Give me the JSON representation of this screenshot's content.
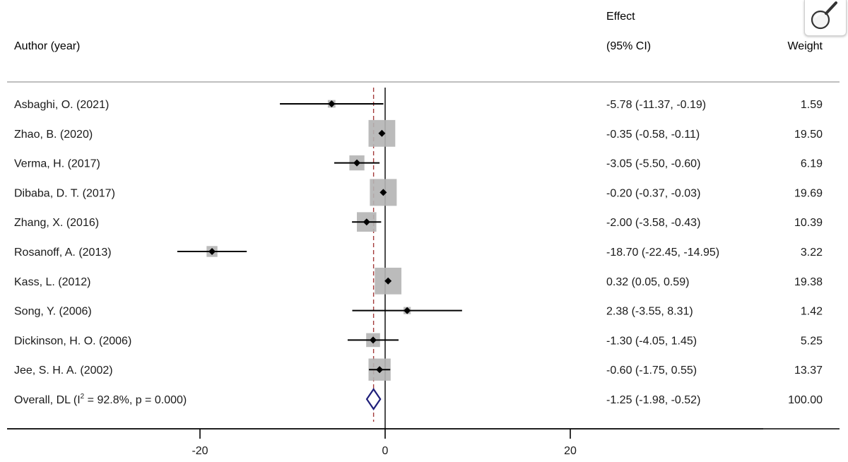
{
  "header": {
    "author_col": "Author (year)",
    "effect_line1": "Effect",
    "effect_line2": "(95% CI)",
    "weight_col": "Weight"
  },
  "zoom": {
    "icon": "magnifier-icon"
  },
  "colors": {
    "ci_line": "#000000",
    "box": "#b4b4b4",
    "diamond": "#1f1f7a",
    "ref_line": "#a33a3a",
    "axis": "#000000"
  },
  "chart_data": {
    "type": "forest",
    "xlim": [
      -40,
      40
    ],
    "xticks": [
      -20,
      0,
      20
    ],
    "xtick_labels": [
      "-20",
      "0",
      "20"
    ],
    "null_line": 0,
    "overall_line": -1.25,
    "studies": [
      {
        "label": "Asbaghi, O. (2021)",
        "effect": -5.78,
        "lower": -11.37,
        "upper": -0.19,
        "ci_text": "-5.78 (-11.37, -0.19)",
        "weight": 1.59,
        "weight_text": "1.59"
      },
      {
        "label": "Zhao, B. (2020)",
        "effect": -0.35,
        "lower": -0.58,
        "upper": -0.11,
        "ci_text": "-0.35 (-0.58, -0.11)",
        "weight": 19.5,
        "weight_text": "19.50"
      },
      {
        "label": "Verma, H. (2017)",
        "effect": -3.05,
        "lower": -5.5,
        "upper": -0.6,
        "ci_text": "-3.05 (-5.50, -0.60)",
        "weight": 6.19,
        "weight_text": "6.19"
      },
      {
        "label": "Dibaba, D. T. (2017)",
        "effect": -0.2,
        "lower": -0.37,
        "upper": -0.03,
        "ci_text": "-0.20 (-0.37, -0.03)",
        "weight": 19.69,
        "weight_text": "19.69"
      },
      {
        "label": "Zhang, X. (2016)",
        "effect": -2.0,
        "lower": -3.58,
        "upper": -0.43,
        "ci_text": "-2.00 (-3.58, -0.43)",
        "weight": 10.39,
        "weight_text": "10.39"
      },
      {
        "label": "Rosanoff, A. (2013)",
        "effect": -18.7,
        "lower": -22.45,
        "upper": -14.95,
        "ci_text": "-18.70 (-22.45, -14.95)",
        "weight": 3.22,
        "weight_text": "3.22"
      },
      {
        "label": "Kass, L. (2012)",
        "effect": 0.32,
        "lower": 0.05,
        "upper": 0.59,
        "ci_text": "0.32 (0.05, 0.59)",
        "weight": 19.38,
        "weight_text": "19.38"
      },
      {
        "label": "Song, Y. (2006)",
        "effect": 2.38,
        "lower": -3.55,
        "upper": 8.31,
        "ci_text": "2.38 (-3.55, 8.31)",
        "weight": 1.42,
        "weight_text": "1.42"
      },
      {
        "label": "Dickinson, H. O. (2006)",
        "effect": -1.3,
        "lower": -4.05,
        "upper": 1.45,
        "ci_text": "-1.30 (-4.05, 1.45)",
        "weight": 5.25,
        "weight_text": "5.25"
      },
      {
        "label": "Jee, S. H. A. (2002)",
        "effect": -0.6,
        "lower": -1.75,
        "upper": 0.55,
        "ci_text": "-0.60 (-1.75, 0.55)",
        "weight": 13.37,
        "weight_text": "13.37"
      }
    ],
    "overall": {
      "label_prefix": "Overall, DL (I",
      "label_sup": "2",
      "label_suffix": " = 92.8%, p = 0.000)",
      "effect": -1.25,
      "lower": -1.98,
      "upper": -0.52,
      "ci_text": "-1.25 (-1.98, -0.52)",
      "weight_text": "100.00"
    }
  }
}
